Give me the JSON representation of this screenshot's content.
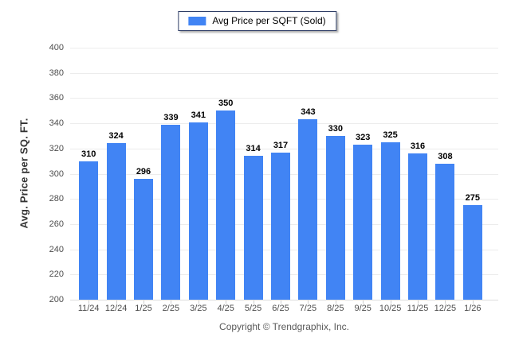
{
  "legend": {
    "label": "Avg Price per SQFT (Sold)",
    "swatch_color": "#4184f4"
  },
  "footer": {
    "copyright": "Copyright © Trendgraphix, Inc."
  },
  "chart_data": {
    "type": "bar",
    "title": "",
    "xlabel": "",
    "ylabel": "Avg. Price per SQ. FT.",
    "categories": [
      "11/24",
      "12/24",
      "1/25",
      "2/25",
      "3/25",
      "4/25",
      "5/25",
      "6/25",
      "7/25",
      "8/25",
      "9/25",
      "10/25",
      "11/25",
      "12/25",
      "1/26"
    ],
    "series": [
      {
        "name": "Avg Price per SQFT (Sold)",
        "color": "#4184f4",
        "values": [
          310,
          324,
          296,
          339,
          341,
          350,
          314,
          317,
          343,
          330,
          323,
          325,
          316,
          308,
          275
        ]
      }
    ],
    "ylim": [
      200,
      400
    ],
    "ytick_step": 20,
    "grid": "horizontal",
    "gridline_color": "#ececec",
    "legend_position": "top-center",
    "value_labels": true
  }
}
